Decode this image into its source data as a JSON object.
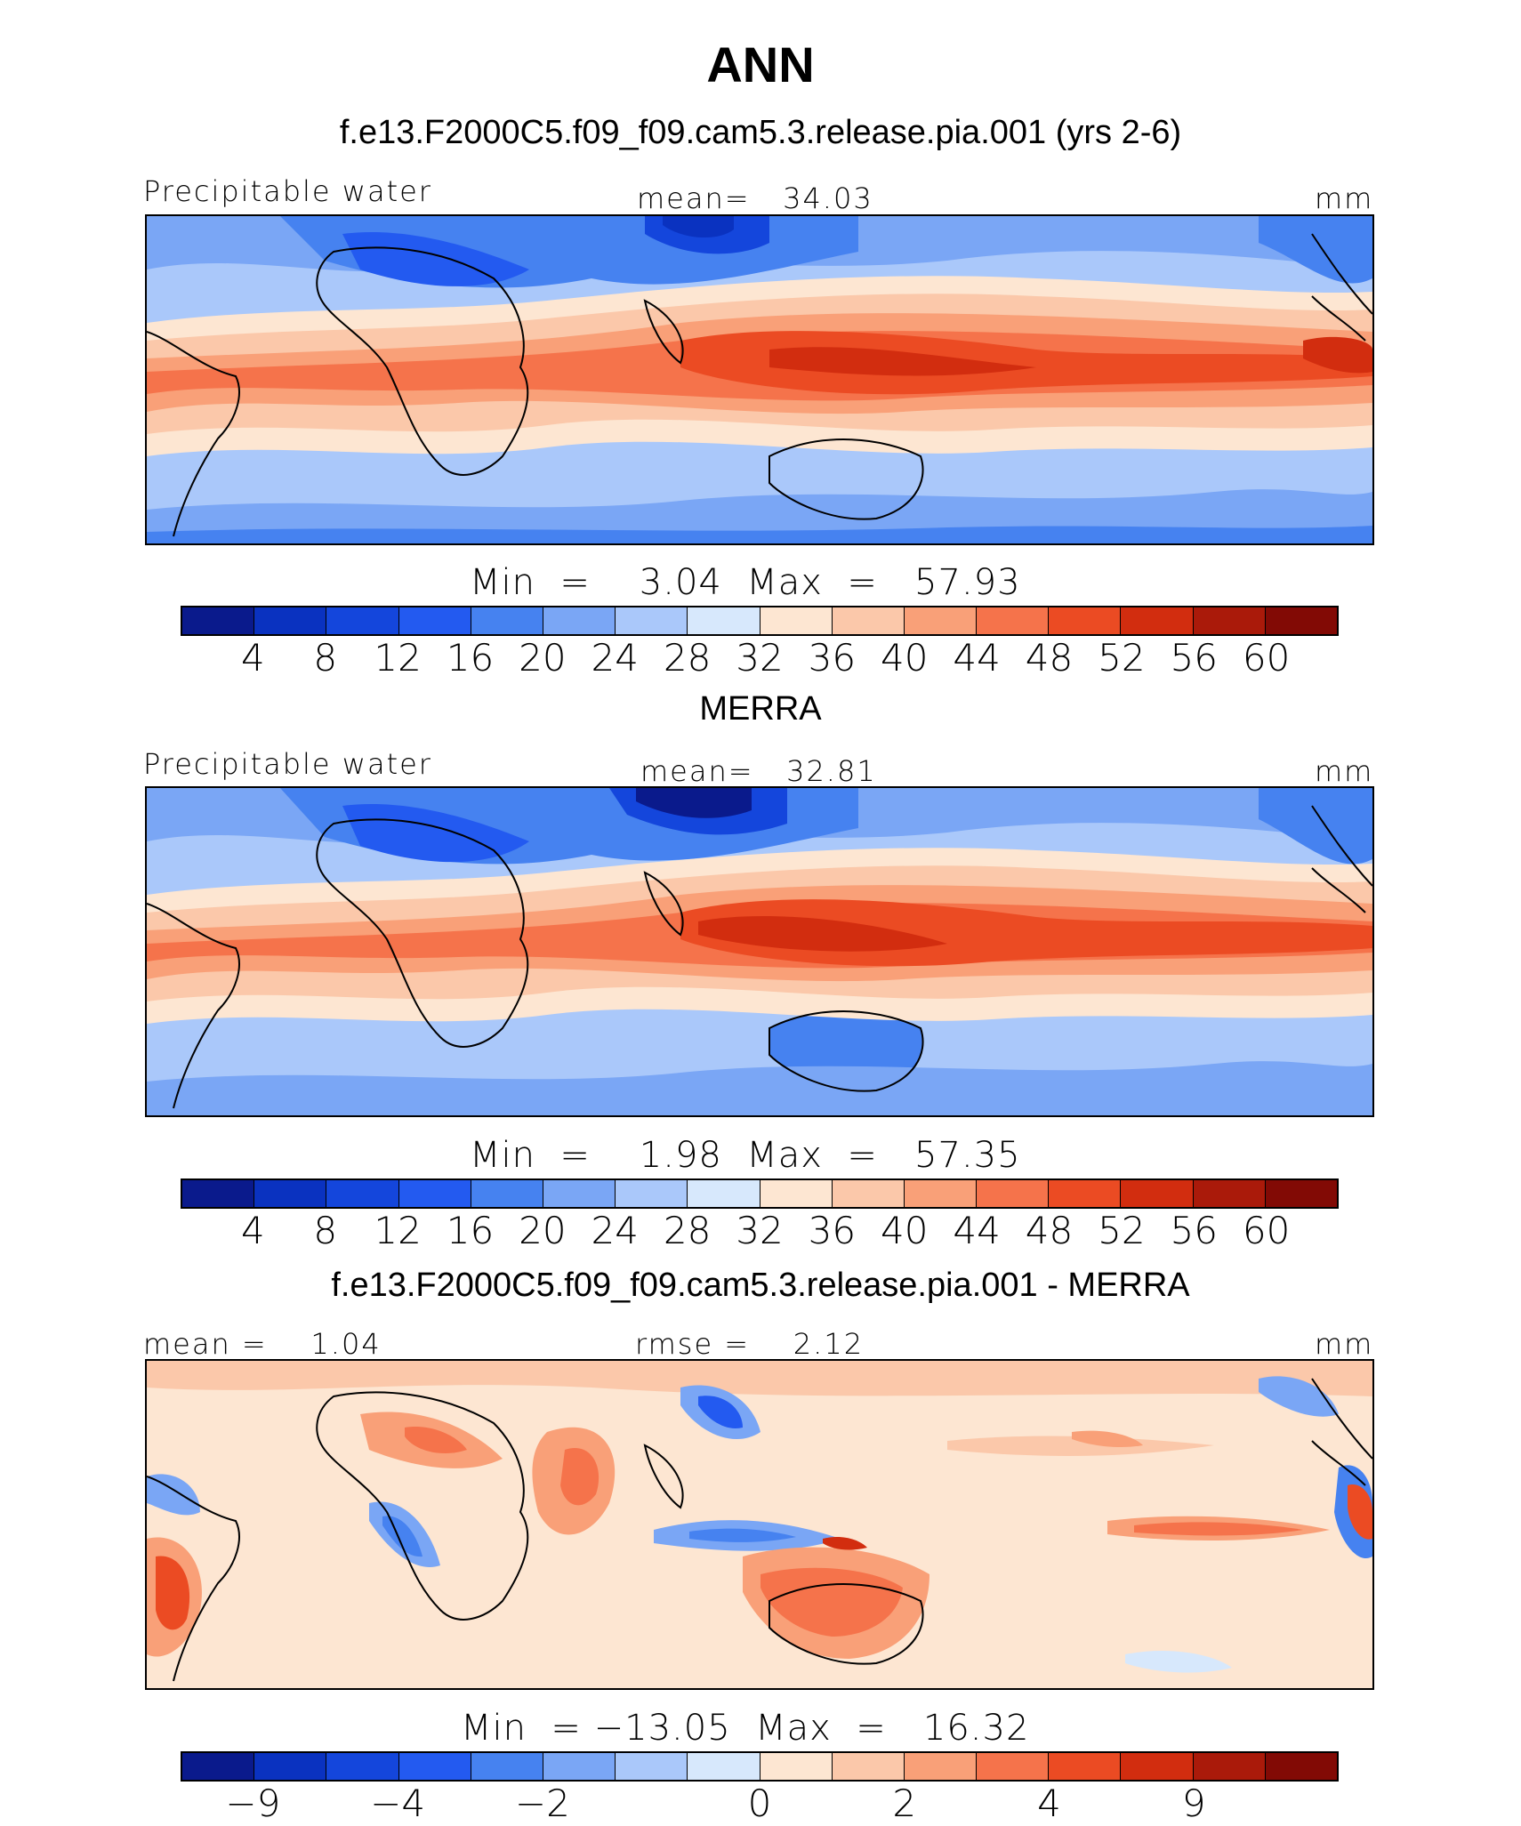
{
  "figure": {
    "title": "ANN",
    "panels": [
      {
        "title": "f.e13.F2000C5.f09_f09.cam5.3.release.pia.001 (yrs 2-6)",
        "left_label": "Precipitable water",
        "center_label": "mean=   34.03",
        "units": "mm",
        "minmax": "Min  =    3.04  Max  =   57.93"
      },
      {
        "title": "MERRA",
        "left_label": "Precipitable water",
        "center_label": "mean=   32.81",
        "units": "mm",
        "minmax": "Min  =    1.98  Max  =   57.35"
      },
      {
        "title": "f.e13.F2000C5.f09_f09.cam5.3.release.pia.001 - MERRA",
        "left_label": "mean =    1.04",
        "center_label": "rmse =    2.12",
        "units": "mm",
        "minmax": "Min  = −13.05  Max  =   16.32"
      }
    ]
  },
  "chart_data": [
    {
      "type": "heatmap",
      "title": "f.e13.F2000C5.f09_f09.cam5.3.release.pia.001 (yrs 2-6)",
      "variable": "Precipitable water",
      "units": "mm",
      "mean": 34.03,
      "min": 3.04,
      "max": 57.93,
      "levels": [
        4,
        8,
        12,
        16,
        20,
        24,
        28,
        32,
        36,
        40,
        44,
        48,
        52,
        56,
        60
      ],
      "tick_labels": [
        "4",
        "8",
        "12",
        "16",
        "20",
        "24",
        "28",
        "32",
        "36",
        "40",
        "44",
        "48",
        "52",
        "56",
        "60"
      ],
      "colors": [
        "#0a1a8c",
        "#0a32c0",
        "#1446dc",
        "#235af0",
        "#4682f0",
        "#7aa6f5",
        "#aac8fa",
        "#d7e8fc",
        "#fde6d2",
        "#fbc8aa",
        "#f9a078",
        "#f5734b",
        "#eb4b23",
        "#d22d0f",
        "#aa1a0a",
        "#820a05"
      ]
    },
    {
      "type": "heatmap",
      "title": "MERRA",
      "variable": "Precipitable water",
      "units": "mm",
      "mean": 32.81,
      "min": 1.98,
      "max": 57.35,
      "levels": [
        4,
        8,
        12,
        16,
        20,
        24,
        28,
        32,
        36,
        40,
        44,
        48,
        52,
        56,
        60
      ],
      "tick_labels": [
        "4",
        "8",
        "12",
        "16",
        "20",
        "24",
        "28",
        "32",
        "36",
        "40",
        "44",
        "48",
        "52",
        "56",
        "60"
      ],
      "colors": [
        "#0a1a8c",
        "#0a32c0",
        "#1446dc",
        "#235af0",
        "#4682f0",
        "#7aa6f5",
        "#aac8fa",
        "#d7e8fc",
        "#fde6d2",
        "#fbc8aa",
        "#f9a078",
        "#f5734b",
        "#eb4b23",
        "#d22d0f",
        "#aa1a0a",
        "#820a05"
      ]
    },
    {
      "type": "heatmap",
      "title": "f.e13.F2000C5.f09_f09.cam5.3.release.pia.001 - MERRA",
      "units": "mm",
      "mean": 1.04,
      "rmse": 2.12,
      "min": -13.05,
      "max": 16.32,
      "levels": [
        -9,
        -4,
        -2,
        0,
        2,
        4,
        9
      ],
      "tick_labels": [
        "−9",
        "−4",
        "−2",
        "0",
        "2",
        "4",
        "9"
      ],
      "tick_segment_index": [
        1,
        3,
        5,
        8,
        10,
        12,
        14
      ],
      "colors": [
        "#0a1a8c",
        "#0a32c0",
        "#1446dc",
        "#235af0",
        "#4682f0",
        "#7aa6f5",
        "#aac8fa",
        "#d7e8fc",
        "#fde6d2",
        "#fbc8aa",
        "#f9a078",
        "#f5734b",
        "#eb4b23",
        "#d22d0f",
        "#aa1a0a",
        "#820a05"
      ]
    }
  ]
}
